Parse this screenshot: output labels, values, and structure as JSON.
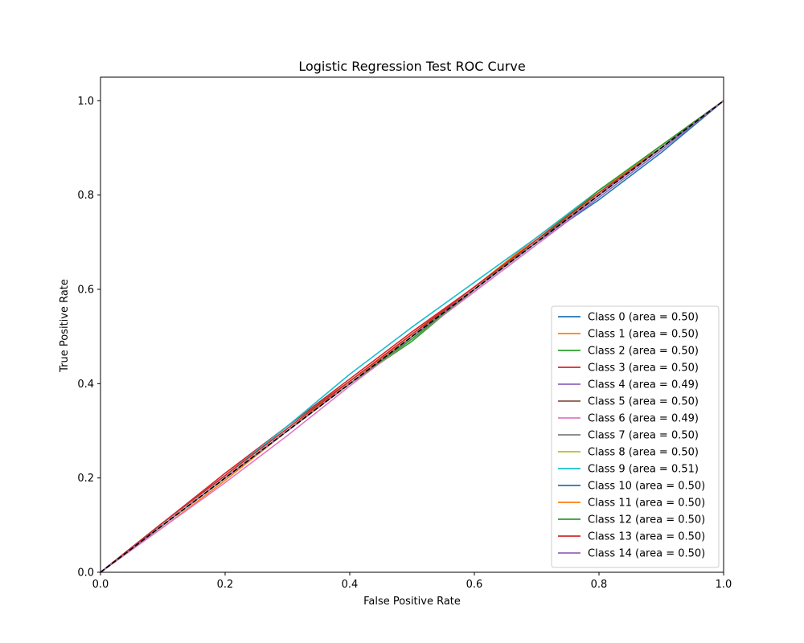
{
  "chart_data": {
    "type": "line",
    "title": "Logistic Regression Test ROC Curve",
    "xlabel": "False Positive Rate",
    "ylabel": "True Positive Rate",
    "xlim": [
      0.0,
      1.0
    ],
    "ylim": [
      0.0,
      1.05
    ],
    "xticks": [
      "0.0",
      "0.2",
      "0.4",
      "0.6",
      "0.8",
      "1.0"
    ],
    "yticks": [
      "0.0",
      "0.2",
      "0.4",
      "0.6",
      "0.8",
      "1.0"
    ],
    "grid": false,
    "legend_position": "lower-right",
    "reference_line": {
      "style": "dashed",
      "color": "#000000",
      "x": [
        0,
        1
      ],
      "y": [
        0,
        1
      ]
    },
    "series": [
      {
        "name": "Class 0 (area = 0.50)",
        "color": "#1f77b4",
        "x": [
          0,
          0.1,
          0.2,
          0.3,
          0.4,
          0.5,
          0.6,
          0.7,
          0.8,
          0.9,
          1.0
        ],
        "y": [
          0,
          0.1,
          0.2,
          0.3,
          0.4,
          0.5,
          0.6,
          0.7,
          0.79,
          0.89,
          1.0
        ]
      },
      {
        "name": "Class 1 (area = 0.50)",
        "color": "#ff7f0e",
        "x": [
          0,
          0.1,
          0.2,
          0.3,
          0.4,
          0.5,
          0.6,
          0.7,
          0.8,
          0.9,
          1.0
        ],
        "y": [
          0,
          0.095,
          0.195,
          0.3,
          0.405,
          0.505,
          0.605,
          0.71,
          0.81,
          0.905,
          1.0
        ]
      },
      {
        "name": "Class 2 (area = 0.50)",
        "color": "#2ca02c",
        "x": [
          0,
          0.1,
          0.2,
          0.3,
          0.4,
          0.5,
          0.6,
          0.7,
          0.8,
          0.9,
          1.0
        ],
        "y": [
          0,
          0.1,
          0.2,
          0.3,
          0.4,
          0.49,
          0.6,
          0.705,
          0.81,
          0.9,
          1.0
        ]
      },
      {
        "name": "Class 3 (area = 0.50)",
        "color": "#d62728",
        "x": [
          0,
          0.1,
          0.2,
          0.3,
          0.4,
          0.5,
          0.6,
          0.7,
          0.8,
          0.9,
          1.0
        ],
        "y": [
          0,
          0.105,
          0.21,
          0.31,
          0.41,
          0.51,
          0.605,
          0.705,
          0.805,
          0.9,
          1.0
        ]
      },
      {
        "name": "Class 4 (area = 0.49)",
        "color": "#9467bd",
        "x": [
          0,
          0.1,
          0.2,
          0.3,
          0.4,
          0.5,
          0.6,
          0.7,
          0.8,
          0.9,
          1.0
        ],
        "y": [
          0,
          0.1,
          0.2,
          0.3,
          0.4,
          0.495,
          0.595,
          0.695,
          0.795,
          0.895,
          1.0
        ]
      },
      {
        "name": "Class 5 (area = 0.50)",
        "color": "#8c564b",
        "x": [
          0,
          0.1,
          0.2,
          0.3,
          0.4,
          0.5,
          0.6,
          0.7,
          0.8,
          0.9,
          1.0
        ],
        "y": [
          0,
          0.105,
          0.205,
          0.31,
          0.405,
          0.505,
          0.6,
          0.7,
          0.8,
          0.9,
          1.0
        ]
      },
      {
        "name": "Class 6 (area = 0.49)",
        "color": "#e377c2",
        "x": [
          0,
          0.1,
          0.2,
          0.3,
          0.4,
          0.5,
          0.6,
          0.7,
          0.8,
          0.9,
          1.0
        ],
        "y": [
          0,
          0.095,
          0.19,
          0.29,
          0.395,
          0.495,
          0.595,
          0.695,
          0.8,
          0.9,
          1.0
        ]
      },
      {
        "name": "Class 7 (area = 0.50)",
        "color": "#7f7f7f",
        "x": [
          0,
          0.1,
          0.2,
          0.3,
          0.4,
          0.5,
          0.6,
          0.7,
          0.8,
          0.9,
          1.0
        ],
        "y": [
          0,
          0.1,
          0.2,
          0.3,
          0.4,
          0.5,
          0.6,
          0.7,
          0.8,
          0.9,
          1.0
        ]
      },
      {
        "name": "Class 8 (area = 0.50)",
        "color": "#bcbd22",
        "x": [
          0,
          0.1,
          0.2,
          0.3,
          0.4,
          0.5,
          0.6,
          0.7,
          0.8,
          0.9,
          1.0
        ],
        "y": [
          0,
          0.1,
          0.2,
          0.3,
          0.4,
          0.495,
          0.6,
          0.7,
          0.805,
          0.9,
          1.0
        ]
      },
      {
        "name": "Class 9 (area = 0.51)",
        "color": "#17becf",
        "x": [
          0,
          0.1,
          0.2,
          0.3,
          0.4,
          0.5,
          0.6,
          0.7,
          0.8,
          0.9,
          1.0
        ],
        "y": [
          0,
          0.105,
          0.205,
          0.31,
          0.42,
          0.52,
          0.615,
          0.71,
          0.81,
          0.905,
          1.0
        ]
      },
      {
        "name": "Class 10 (area = 0.50)",
        "color": "#1f77b4",
        "x": [
          0,
          0.1,
          0.2,
          0.3,
          0.4,
          0.5,
          0.6,
          0.7,
          0.8,
          0.9,
          1.0
        ],
        "y": [
          0,
          0.1,
          0.2,
          0.3,
          0.4,
          0.5,
          0.6,
          0.7,
          0.8,
          0.9,
          1.0
        ]
      },
      {
        "name": "Class 11 (area = 0.50)",
        "color": "#ff7f0e",
        "x": [
          0,
          0.1,
          0.2,
          0.3,
          0.4,
          0.5,
          0.6,
          0.7,
          0.8,
          0.9,
          1.0
        ],
        "y": [
          0,
          0.1,
          0.2,
          0.3,
          0.4,
          0.505,
          0.605,
          0.705,
          0.805,
          0.905,
          1.0
        ]
      },
      {
        "name": "Class 12 (area = 0.50)",
        "color": "#2ca02c",
        "x": [
          0,
          0.1,
          0.2,
          0.3,
          0.4,
          0.5,
          0.6,
          0.7,
          0.8,
          0.9,
          1.0
        ],
        "y": [
          0,
          0.1,
          0.2,
          0.3,
          0.4,
          0.495,
          0.6,
          0.7,
          0.81,
          0.905,
          1.0
        ]
      },
      {
        "name": "Class 13 (area = 0.50)",
        "color": "#d62728",
        "x": [
          0,
          0.1,
          0.2,
          0.3,
          0.4,
          0.5,
          0.6,
          0.7,
          0.8,
          0.9,
          1.0
        ],
        "y": [
          0,
          0.105,
          0.205,
          0.305,
          0.405,
          0.505,
          0.605,
          0.705,
          0.805,
          0.9,
          1.0
        ]
      },
      {
        "name": "Class 14 (area = 0.50)",
        "color": "#9467bd",
        "x": [
          0,
          0.1,
          0.2,
          0.3,
          0.4,
          0.5,
          0.6,
          0.7,
          0.8,
          0.9,
          1.0
        ],
        "y": [
          0,
          0.1,
          0.2,
          0.3,
          0.4,
          0.5,
          0.6,
          0.7,
          0.8,
          0.9,
          1.0
        ]
      }
    ]
  }
}
